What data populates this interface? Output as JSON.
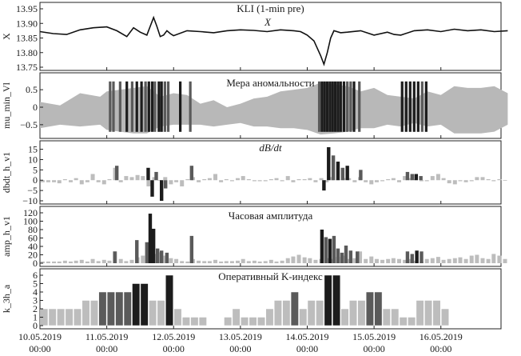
{
  "figure": {
    "x_tick_labels": [
      {
        "date": "10.05.2019",
        "time": "00:00"
      },
      {
        "date": "11.05.2019",
        "time": "00:00"
      },
      {
        "date": "12.05.2019",
        "time": "00:00"
      },
      {
        "date": "13.05.2019",
        "time": "00:00"
      },
      {
        "date": "14.05.2019",
        "time": "00:00"
      },
      {
        "date": "15.05.2019",
        "time": "00:00"
      },
      {
        "date": "16.05.2019",
        "time": "00:00"
      }
    ]
  },
  "chart_data": [
    {
      "type": "line",
      "title": "KLI (1-min pre)",
      "annotation": "X",
      "ylabel": "X",
      "ylim": [
        13.75,
        13.95
      ],
      "yticks": [
        "13.95",
        "13.90",
        "13.85",
        "13.80",
        "13.75"
      ],
      "x_unit": "days since 10.05.2019 00:00",
      "x": [
        0,
        0.2,
        0.4,
        0.6,
        0.8,
        1.0,
        1.15,
        1.3,
        1.4,
        1.5,
        1.6,
        1.7,
        1.75,
        1.8,
        1.85,
        1.9,
        1.95,
        2.0,
        2.2,
        2.4,
        2.6,
        2.8,
        3.0,
        3.2,
        3.4,
        3.6,
        3.8,
        3.9,
        4.0,
        4.1,
        4.2,
        4.25,
        4.3,
        4.35,
        4.4,
        4.5,
        4.6,
        4.8,
        5.0,
        5.2,
        5.3,
        5.4,
        5.6,
        5.8,
        6.0,
        6.2,
        6.4,
        6.6,
        6.8,
        7.0
      ],
      "y": [
        13.872,
        13.865,
        13.862,
        13.878,
        13.885,
        13.888,
        13.875,
        13.855,
        13.885,
        13.87,
        13.86,
        13.92,
        13.89,
        13.855,
        13.86,
        13.875,
        13.865,
        13.858,
        13.875,
        13.872,
        13.868,
        13.875,
        13.878,
        13.876,
        13.872,
        13.878,
        13.875,
        13.872,
        13.86,
        13.84,
        13.79,
        13.76,
        13.8,
        13.85,
        13.875,
        13.868,
        13.87,
        13.875,
        13.86,
        13.87,
        13.862,
        13.86,
        13.875,
        13.878,
        13.872,
        13.88,
        13.875,
        13.878,
        13.872,
        13.875
      ]
    },
    {
      "type": "bar",
      "title": "Мера аномальности",
      "ylabel": "mu_min_Vl",
      "ylim": [
        -0.8,
        0.8
      ],
      "yticks": [
        "0.5",
        "0",
        "−0.5"
      ],
      "x_unit": "days since 10.05.2019 00:00",
      "background_envelope": {
        "x": [
          0,
          0.3,
          0.6,
          0.9,
          1.0,
          1.2,
          1.4,
          1.6,
          1.8,
          2.0,
          2.2,
          2.4,
          2.6,
          2.8,
          3.0,
          3.2,
          3.4,
          3.6,
          3.8,
          4.0,
          4.2,
          4.4,
          4.6,
          4.8,
          5.0,
          5.2,
          5.4,
          5.6,
          5.8,
          6.0,
          6.2,
          6.4,
          6.6,
          6.8,
          7.0
        ],
        "top": [
          0.15,
          0.05,
          0.4,
          0.3,
          0.45,
          0.5,
          0.55,
          0.6,
          0.3,
          0.4,
          0.35,
          0.1,
          0.2,
          0.0,
          0.1,
          0.25,
          0.3,
          0.45,
          0.5,
          0.55,
          0.7,
          0.65,
          0.6,
          0.45,
          0.55,
          0.35,
          0.3,
          0.25,
          0.45,
          0.35,
          0.6,
          0.55,
          0.55,
          0.6,
          0.4
        ],
        "bottom": [
          -0.6,
          -0.5,
          -0.55,
          -0.5,
          -0.65,
          -0.7,
          -0.75,
          -0.75,
          -0.55,
          -0.5,
          -0.5,
          -0.5,
          -0.55,
          -0.5,
          -0.45,
          -0.55,
          -0.55,
          -0.6,
          -0.6,
          -0.65,
          -0.78,
          -0.75,
          -0.7,
          -0.6,
          -0.6,
          -0.5,
          -0.55,
          -0.45,
          -0.55,
          -0.5,
          -0.75,
          -0.75,
          -0.75,
          -0.7,
          -0.5
        ]
      },
      "highlight_spikes": {
        "x": [
          1.05,
          1.1,
          1.2,
          1.3,
          1.38,
          1.45,
          1.52,
          1.58,
          1.63,
          1.68,
          1.72,
          1.78,
          1.82,
          1.87,
          1.92,
          2.1,
          2.25,
          4.18,
          4.22,
          4.26,
          4.3,
          4.34,
          4.38,
          4.42,
          4.46,
          4.5,
          4.55,
          4.6,
          4.65,
          4.7,
          4.78,
          5.42,
          5.48,
          5.54,
          5.6,
          5.66,
          5.72,
          5.78
        ],
        "shade": [
          "mid",
          "mid",
          "mid",
          "dark",
          "mid",
          "dark",
          "dark",
          "mid",
          "dark",
          "dark",
          "mid",
          "dark",
          "dark",
          "mid",
          "mid",
          "dark",
          "mid",
          "mid",
          "dark",
          "dark",
          "dark",
          "dark",
          "dark",
          "dark",
          "dark",
          "dark",
          "dark",
          "mid",
          "mid",
          "dark",
          "mid",
          "dark",
          "dark",
          "dark",
          "dark",
          "dark",
          "mid",
          "dark"
        ]
      }
    },
    {
      "type": "bar",
      "title": "dB/dt",
      "ylabel": "dbdt_h_v1",
      "ylim": [
        -10,
        16
      ],
      "yticks": [
        "15",
        "10",
        "5",
        "0",
        "−5",
        "−10"
      ],
      "x_unit": "days since 10.05.2019 00:00",
      "x": [
        0.04,
        0.125,
        0.21,
        0.29,
        0.375,
        0.46,
        0.54,
        0.625,
        0.71,
        0.79,
        0.875,
        0.96,
        1.04,
        1.125,
        1.21,
        1.29,
        1.375,
        1.46,
        1.54,
        1.625,
        1.71,
        1.79,
        1.875,
        1.96,
        2.04,
        2.125,
        2.21,
        2.29,
        2.375,
        2.46,
        2.54,
        2.625,
        2.71,
        2.79,
        2.875,
        2.96,
        3.04,
        3.125,
        3.21,
        3.29,
        3.375,
        3.46,
        3.54,
        3.625,
        3.71,
        3.79,
        3.875,
        3.96,
        4.04,
        4.125,
        4.21,
        4.29,
        4.375,
        4.46,
        4.54,
        4.625,
        4.71,
        4.79,
        4.875,
        4.96,
        5.04,
        5.125,
        5.21,
        5.29,
        5.375,
        5.46,
        5.54,
        5.625,
        5.71,
        5.79,
        5.875,
        5.96,
        6.04,
        6.125,
        6.21,
        6.29,
        6.375,
        6.46,
        6.54,
        6.625,
        6.71,
        6.79,
        6.875,
        6.96
      ],
      "values": [
        -1,
        -1,
        -1,
        -1.5,
        0.5,
        -1,
        1,
        -2,
        -1,
        3,
        -1,
        -2,
        0.5,
        6,
        -1,
        2,
        1.5,
        2.5,
        2,
        -3,
        1.5,
        0,
        1.5,
        -2,
        -1,
        -3,
        0.5,
        1.5,
        -1,
        0.5,
        1,
        3,
        -1,
        0.5,
        -0.5,
        1,
        2,
        0.5,
        -0.5,
        -0.5,
        -0.5,
        0.5,
        1,
        -0.5,
        2,
        -1,
        0.5,
        0.5,
        1,
        -1,
        1,
        -1,
        1.5,
        0.5,
        1,
        1,
        -1,
        1.5,
        -1,
        -2,
        -1,
        -0.5,
        0.5,
        1,
        -1,
        2,
        1,
        0.5,
        -0.5,
        -0.5,
        2,
        3,
        1,
        -1.5,
        -2,
        -0.5,
        -1,
        -0.5,
        1.5,
        1.5,
        0.5,
        -0.5,
        0.5,
        0
      ],
      "highlight": {
        "x": [
          1.15,
          1.62,
          1.68,
          1.74,
          1.82,
          1.88,
          2.27,
          4.25,
          4.32,
          4.39,
          4.46,
          4.53,
          4.6,
          4.8,
          5.5,
          5.57,
          5.63,
          5.7
        ],
        "values": [
          7,
          6,
          -8,
          4,
          -10,
          -4,
          7,
          -5,
          16,
          12,
          9,
          6,
          7,
          5,
          4,
          3,
          3,
          2
        ],
        "shade": [
          "mid",
          "dark",
          "dark",
          "mid",
          "dark",
          "mid",
          "mid",
          "dark",
          "dark",
          "mid",
          "dark",
          "mid",
          "dark",
          "mid",
          "mid",
          "mid",
          "dark",
          "mid"
        ]
      }
    },
    {
      "type": "bar",
      "title": "Часовая амплитуда",
      "ylabel": "amp_h_v1",
      "ylim": [
        0,
        120
      ],
      "yticks": [
        "120",
        "100",
        "80",
        "60",
        "40",
        "20",
        "0"
      ],
      "x_unit": "days since 10.05.2019 00:00",
      "x": [
        0.04,
        0.125,
        0.21,
        0.29,
        0.375,
        0.46,
        0.54,
        0.625,
        0.71,
        0.79,
        0.875,
        0.96,
        1.04,
        1.125,
        1.21,
        1.29,
        1.375,
        1.46,
        1.54,
        1.625,
        1.71,
        1.79,
        1.875,
        1.96,
        2.04,
        2.125,
        2.21,
        2.29,
        2.375,
        2.46,
        2.54,
        2.625,
        2.71,
        2.79,
        2.875,
        2.96,
        3.04,
        3.125,
        3.21,
        3.29,
        3.375,
        3.46,
        3.54,
        3.625,
        3.71,
        3.79,
        3.875,
        3.96,
        4.04,
        4.125,
        4.21,
        4.29,
        4.375,
        4.46,
        4.54,
        4.625,
        4.71,
        4.79,
        4.875,
        4.96,
        5.04,
        5.125,
        5.21,
        5.29,
        5.375,
        5.46,
        5.54,
        5.625,
        5.71,
        5.79,
        5.875,
        5.96,
        6.04,
        6.125,
        6.21,
        6.29,
        6.375,
        6.46,
        6.54,
        6.625,
        6.71,
        6.79,
        6.875,
        6.96
      ],
      "values": [
        4,
        4,
        4,
        4,
        6,
        4,
        6,
        8,
        4,
        10,
        5,
        8,
        6,
        28,
        10,
        5,
        8,
        14,
        18,
        10,
        22,
        26,
        18,
        12,
        10,
        5,
        4,
        10,
        6,
        5,
        5,
        8,
        4,
        5,
        5,
        6,
        10,
        5,
        6,
        4,
        5,
        8,
        4,
        6,
        12,
        16,
        20,
        14,
        12,
        8,
        10,
        12,
        10,
        15,
        18,
        10,
        12,
        28,
        10,
        16,
        10,
        8,
        10,
        12,
        10,
        8,
        10,
        6,
        4,
        10,
        12,
        15,
        8,
        10,
        12,
        14,
        10,
        18,
        20,
        12,
        10,
        22,
        18,
        10
      ],
      "highlight": {
        "x": [
          1.12,
          1.45,
          1.6,
          1.65,
          1.7,
          1.76,
          1.82,
          1.9,
          2.27,
          4.22,
          4.28,
          4.34,
          4.4,
          4.46,
          4.52,
          4.58,
          4.65,
          4.75,
          5.5,
          5.57,
          5.64,
          5.71
        ],
        "values": [
          28,
          55,
          50,
          118,
          82,
          35,
          30,
          25,
          65,
          80,
          62,
          58,
          65,
          35,
          25,
          42,
          30,
          28,
          28,
          22,
          30,
          28
        ],
        "shade": [
          "mid",
          "mid",
          "mid",
          "dark",
          "dark",
          "mid",
          "mid",
          "mid",
          "mid",
          "dark",
          "mid",
          "dark",
          "mid",
          "mid",
          "mid",
          "mid",
          "mid",
          "mid",
          "mid",
          "mid",
          "dark",
          "mid"
        ]
      }
    },
    {
      "type": "bar",
      "title": "Оперативный K-индекс",
      "ylabel": "k_3h_a",
      "ylim": [
        0,
        6
      ],
      "yticks": [
        "6",
        "5",
        "4",
        "3",
        "2",
        "1",
        "0"
      ],
      "x_unit": "days since 10.05.2019 00:00",
      "categories": [
        "10.05 00",
        "10.05 03",
        "10.05 06",
        "10.05 09",
        "10.05 12",
        "10.05 15",
        "10.05 18",
        "10.05 21",
        "11.05 00",
        "11.05 03",
        "11.05 06",
        "11.05 09",
        "11.05 12",
        "11.05 15",
        "11.05 18",
        "11.05 21",
        "12.05 00",
        "12.05 03",
        "12.05 06",
        "12.05 09",
        "12.05 12",
        "12.05 15",
        "12.05 18",
        "12.05 21",
        "13.05 00",
        "13.05 03",
        "13.05 06",
        "13.05 09",
        "13.05 12",
        "13.05 15",
        "13.05 18",
        "13.05 21",
        "14.05 00",
        "14.05 03",
        "14.05 06",
        "14.05 09",
        "14.05 12",
        "14.05 15",
        "14.05 18",
        "14.05 21",
        "15.05 00",
        "15.05 03",
        "15.05 06",
        "15.05 09",
        "15.05 12",
        "15.05 15",
        "15.05 18",
        "15.05 21",
        "16.05 00"
      ],
      "values": [
        2,
        2,
        2,
        2,
        2,
        3,
        3,
        4,
        4,
        4,
        4,
        5,
        5,
        3,
        3,
        6,
        2,
        1,
        1,
        1,
        0,
        0,
        1,
        2,
        1,
        1,
        1,
        2,
        3,
        3,
        4,
        2,
        3,
        3,
        6,
        6,
        2,
        3,
        3,
        4,
        4,
        2,
        2,
        1,
        1,
        3,
        3,
        3,
        2
      ],
      "shade": [
        "light",
        "light",
        "light",
        "light",
        "light",
        "light",
        "light",
        "mid",
        "mid",
        "mid",
        "mid",
        "dark",
        "dark",
        "light",
        "light",
        "dark",
        "light",
        "light",
        "light",
        "light",
        "light",
        "light",
        "light",
        "light",
        "light",
        "light",
        "light",
        "light",
        "light",
        "light",
        "mid",
        "light",
        "light",
        "light",
        "dark",
        "dark",
        "light",
        "light",
        "light",
        "mid",
        "mid",
        "light",
        "light",
        "light",
        "light",
        "light",
        "light",
        "light",
        "light"
      ]
    }
  ]
}
